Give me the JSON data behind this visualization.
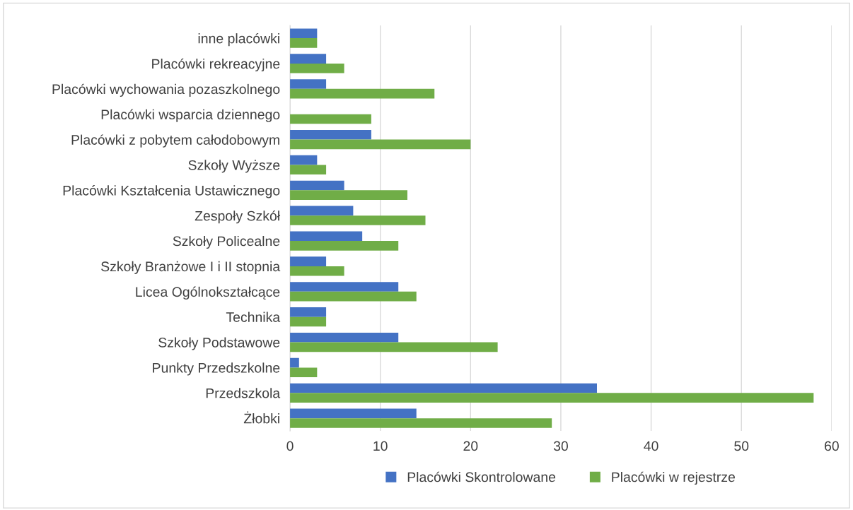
{
  "chart_data": {
    "type": "bar",
    "orientation": "horizontal",
    "categories": [
      "inne placówki",
      "Placówki rekreacyjne",
      "Placówki wychowania pozaszkolnego",
      "Placówki wsparcia dziennego",
      "Placówki z pobytem całodobowym",
      "Szkoły Wyższe",
      "Placówki Kształcenia Ustawicznego",
      "Zespoły Szkół",
      "Szkoły Policealne",
      "Szkoły Branżowe I i II stopnia",
      "Licea Ogólnokształcące",
      "Technika",
      "Szkoły Podstawowe",
      "Punkty Przedszkolne",
      "Przedszkola",
      "Żłobki"
    ],
    "series": [
      {
        "name": "Placówki Skontrolowane",
        "color": "#4472c4",
        "values": [
          3,
          4,
          4,
          0,
          9,
          3,
          6,
          7,
          8,
          4,
          12,
          4,
          12,
          1,
          34,
          14
        ]
      },
      {
        "name": "Placówki w rejestrze",
        "color": "#70ad47",
        "values": [
          3,
          6,
          16,
          9,
          20,
          4,
          13,
          15,
          12,
          6,
          14,
          4,
          23,
          3,
          58,
          29
        ]
      }
    ],
    "xlim": [
      0,
      60
    ],
    "xticks": [
      0,
      10,
      20,
      30,
      40,
      50,
      60
    ],
    "grid": "x",
    "legend": "bottom"
  }
}
